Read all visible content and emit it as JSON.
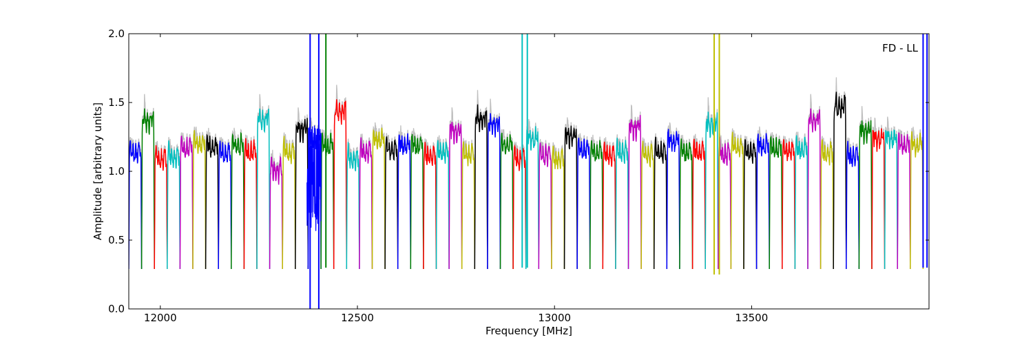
{
  "chart_data": {
    "type": "line",
    "title": "",
    "xlabel": "Frequency [MHz]",
    "ylabel": "Amplitude [arbitrary units]",
    "xlim": [
      11920,
      13950
    ],
    "ylim": [
      0.0,
      2.0
    ],
    "xticks": [
      12000,
      12500,
      13000,
      13500
    ],
    "yticks": [
      0.0,
      0.5,
      1.0,
      1.5,
      2.0
    ],
    "ytick_labels": [
      "0.0",
      "0.5",
      "1.0",
      "1.5",
      "2.0"
    ],
    "annotation": "FD - LL",
    "annotation_position": "top-right",
    "grid": false,
    "legend": "none",
    "background_series_color": "#bfbfbf",
    "channel_colors": [
      "#0000ff",
      "#008000",
      "#ff0000",
      "#00bfbf",
      "#bf00bf",
      "#bfbf00",
      "#000000"
    ],
    "channel_count": 62,
    "channel_start_mhz": 11920,
    "channel_spacing_mhz": 32.5,
    "baseline_level": 0.29,
    "typical_peak_level": 1.2,
    "peak_values": [
      1.25,
      1.48,
      1.2,
      1.22,
      1.28,
      1.31,
      1.29,
      1.24,
      1.3,
      1.25,
      1.49,
      1.12,
      1.25,
      1.42,
      1.35,
      1.3,
      1.54,
      1.2,
      1.25,
      1.34,
      1.27,
      1.3,
      1.3,
      1.22,
      1.25,
      1.4,
      1.23,
      1.49,
      1.45,
      1.3,
      1.2,
      1.35,
      1.23,
      1.2,
      1.37,
      1.27,
      1.25,
      1.23,
      1.25,
      1.43,
      1.23,
      1.25,
      1.33,
      1.25,
      1.25,
      1.45,
      1.24,
      1.29,
      1.25,
      1.3,
      1.28,
      1.26,
      1.27,
      1.48,
      1.24,
      1.58,
      1.22,
      1.4,
      1.35,
      1.35,
      1.3,
      1.3
    ],
    "spikes": [
      {
        "x": 12380,
        "ymin": 0.0,
        "ymax": 2.0,
        "color": "#0000ff"
      },
      {
        "x": 12402,
        "ymin": 0.0,
        "ymax": 2.0,
        "color": "#0000ff"
      },
      {
        "x": 12420,
        "ymin": 0.3,
        "ymax": 2.0,
        "color": "#008000"
      },
      {
        "x": 12918,
        "ymin": 0.3,
        "ymax": 2.0,
        "color": "#00bfbf"
      },
      {
        "x": 12931,
        "ymin": 0.3,
        "ymax": 2.0,
        "color": "#00bfbf"
      },
      {
        "x": 13405,
        "ymin": 0.25,
        "ymax": 2.0,
        "color": "#bfbf00"
      },
      {
        "x": 13418,
        "ymin": 0.25,
        "ymax": 2.0,
        "color": "#bfbf00"
      },
      {
        "x": 13935,
        "ymin": 0.3,
        "ymax": 2.0,
        "color": "#0000ff"
      },
      {
        "x": 13945,
        "ymin": 0.3,
        "ymax": 2.0,
        "color": "#0000ff"
      }
    ]
  }
}
